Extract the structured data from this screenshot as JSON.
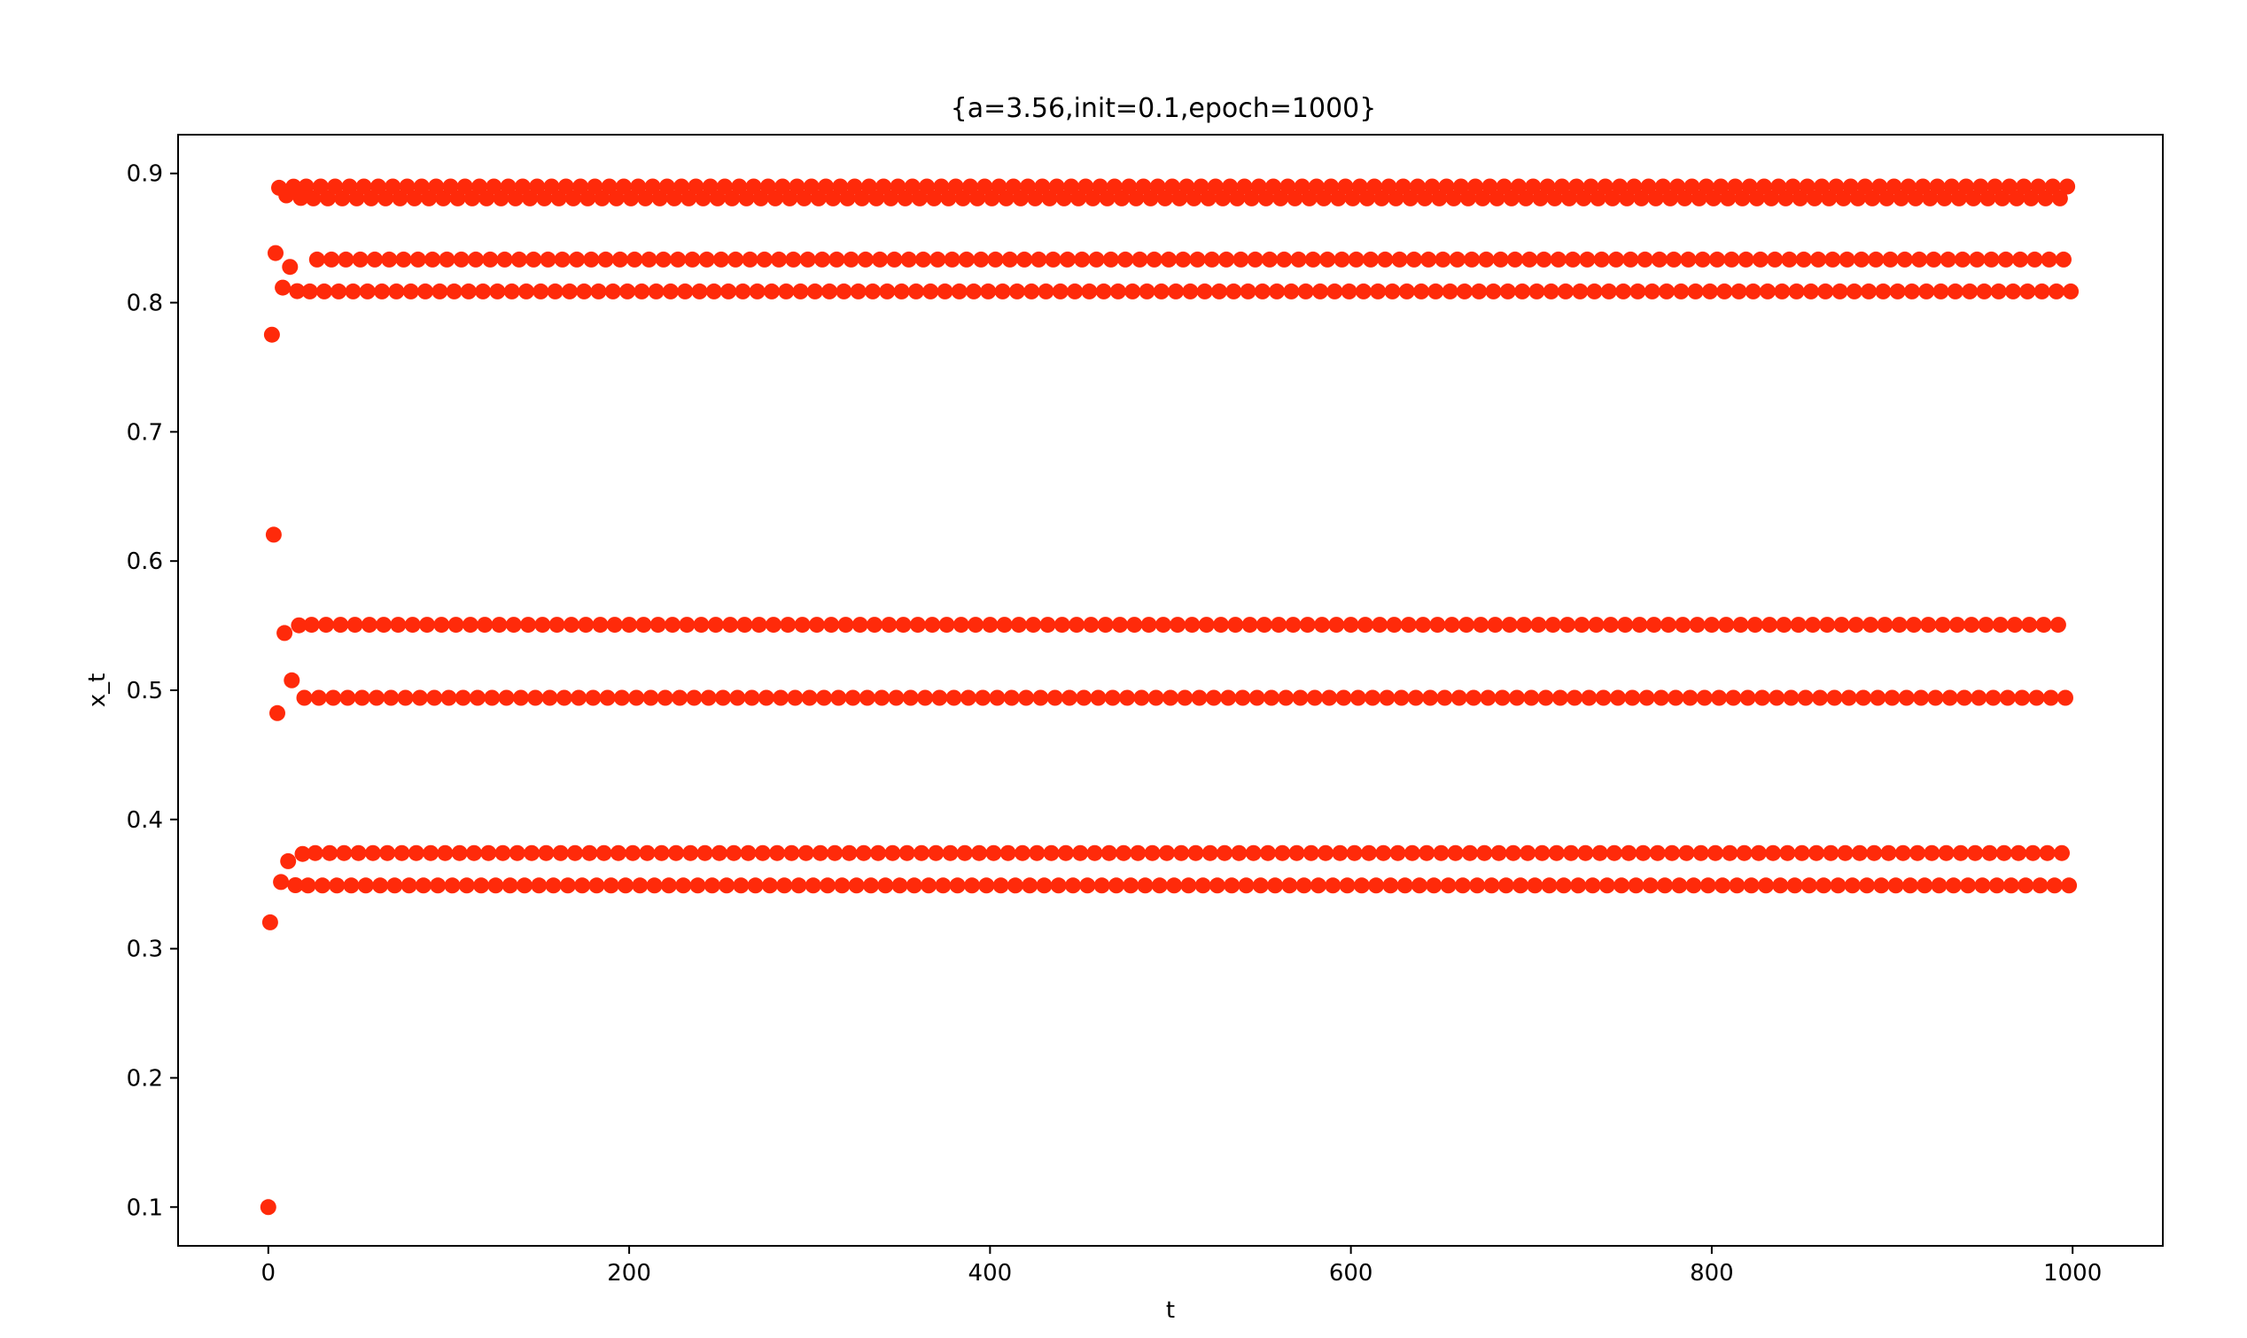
{
  "chart_data": {
    "type": "scatter",
    "title": "{a=3.56,init=0.1,epoch=1000}",
    "xlabel": "t",
    "ylabel": "x_t",
    "xlim": [
      -50,
      1050
    ],
    "ylim": [
      0.07,
      0.93
    ],
    "xticks": [
      0,
      200,
      400,
      600,
      800,
      1000
    ],
    "yticks": [
      0.1,
      0.2,
      0.3,
      0.4,
      0.5,
      0.6,
      0.7,
      0.8,
      0.9
    ],
    "grid": false,
    "legend": "none",
    "color": "#ff2a0a",
    "series": [
      {
        "initial_points": {
          "x": [
            0,
            1,
            2,
            3,
            4,
            5,
            6,
            7,
            8,
            9,
            10,
            11,
            12,
            13,
            14,
            15,
            16,
            17,
            18,
            19
          ],
          "y": [
            0.1,
            0.3204,
            0.7752,
            0.6204,
            0.8384,
            0.4823,
            0.8889,
            0.3516,
            0.8116,
            0.5443,
            0.883,
            0.3677,
            0.8277,
            0.5077,
            0.8898,
            0.3491,
            0.8089,
            0.5503,
            0.881,
            0.3733
          ]
        },
        "cycle_start_t": 20,
        "cycle_end_t": 999,
        "cycle_values": [
          0.4942,
          0.8899,
          0.3489,
          0.8087,
          0.5507,
          0.8807,
          0.374,
          0.8334
        ]
      }
    ]
  }
}
